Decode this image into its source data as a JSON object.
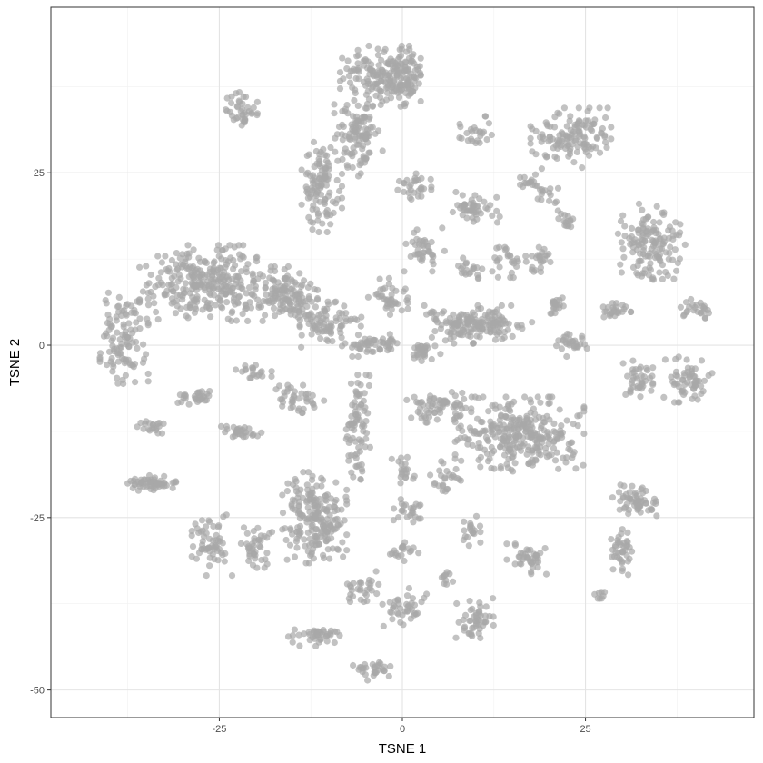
{
  "chart_data": {
    "type": "scatter",
    "title": "",
    "xlabel": "TSNE 1",
    "ylabel": "TSNE 2",
    "xlim": [
      -48,
      48
    ],
    "ylim": [
      -54,
      49
    ],
    "x_ticks": [
      -25,
      0,
      25
    ],
    "y_ticks": [
      -50,
      -25,
      0,
      25
    ],
    "x_tick_labels": [
      "-25",
      "0",
      "25"
    ],
    "y_tick_labels": [
      "-50",
      "-25",
      "0",
      "25"
    ],
    "grid": true,
    "legend": "none",
    "point_color": "#a8a8a8",
    "point_opacity": 0.7,
    "clusters": [
      {
        "cx": -26,
        "cy": 9,
        "rx": 9,
        "ry": 5,
        "n": 320
      },
      {
        "cx": -38,
        "cy": 1,
        "rx": 3,
        "ry": 6,
        "n": 110
      },
      {
        "cx": -16,
        "cy": 7,
        "rx": 4,
        "ry": 4,
        "n": 120
      },
      {
        "cx": -10,
        "cy": 3,
        "rx": 4,
        "ry": 3,
        "n": 80
      },
      {
        "cx": -5,
        "cy": 0,
        "rx": 3,
        "ry": 1.5,
        "n": 40
      },
      {
        "cx": -3,
        "cy": 39,
        "rx": 5,
        "ry": 4,
        "n": 150
      },
      {
        "cx": -6,
        "cy": 30,
        "rx": 3,
        "ry": 5,
        "n": 110
      },
      {
        "cx": -11,
        "cy": 23,
        "rx": 2.5,
        "ry": 6,
        "n": 110
      },
      {
        "cx": 0.5,
        "cy": 39,
        "rx": 2,
        "ry": 4,
        "n": 70
      },
      {
        "cx": -22,
        "cy": 34,
        "rx": 2,
        "ry": 3,
        "n": 40
      },
      {
        "cx": -12,
        "cy": -25,
        "rx": 4,
        "ry": 6,
        "n": 210
      },
      {
        "cx": -6,
        "cy": -12,
        "rx": 1.5,
        "ry": 7,
        "n": 80
      },
      {
        "cx": 16,
        "cy": -13,
        "rx": 8,
        "ry": 5,
        "n": 300
      },
      {
        "cx": 5,
        "cy": -9,
        "rx": 4,
        "ry": 2,
        "n": 70
      },
      {
        "cx": 10,
        "cy": 3,
        "rx": 7,
        "ry": 2.5,
        "n": 170
      },
      {
        "cx": 3,
        "cy": -1,
        "rx": 2,
        "ry": 1.5,
        "n": 30
      },
      {
        "cx": 23,
        "cy": 30,
        "rx": 5,
        "ry": 4,
        "n": 130
      },
      {
        "cx": 34,
        "cy": 15,
        "rx": 4.5,
        "ry": 5,
        "n": 140
      },
      {
        "cx": 39,
        "cy": -5,
        "rx": 3,
        "ry": 3,
        "n": 60
      },
      {
        "cx": 32,
        "cy": -5,
        "rx": 2,
        "ry": 2.5,
        "n": 40
      },
      {
        "cx": 40,
        "cy": 5,
        "rx": 2,
        "ry": 1.5,
        "n": 25
      },
      {
        "cx": 32,
        "cy": -23,
        "rx": 3,
        "ry": 2.5,
        "n": 60
      },
      {
        "cx": 30,
        "cy": -30,
        "rx": 1.5,
        "ry": 3,
        "n": 40
      },
      {
        "cx": -26,
        "cy": -29,
        "rx": 2.5,
        "ry": 4,
        "n": 60
      },
      {
        "cx": -20,
        "cy": -29,
        "rx": 2,
        "ry": 3,
        "n": 40
      },
      {
        "cx": -34,
        "cy": -20,
        "rx": 3.5,
        "ry": 1,
        "n": 60
      },
      {
        "cx": -34,
        "cy": -12,
        "rx": 2,
        "ry": 1,
        "n": 20
      },
      {
        "cx": -28,
        "cy": -7.5,
        "rx": 3,
        "ry": 1,
        "n": 30
      },
      {
        "cx": -22,
        "cy": -12.5,
        "rx": 2.5,
        "ry": 1,
        "n": 30
      },
      {
        "cx": -14,
        "cy": -8,
        "rx": 3,
        "ry": 2,
        "n": 40
      },
      {
        "cx": -20,
        "cy": -4,
        "rx": 2.5,
        "ry": 1,
        "n": 20
      },
      {
        "cx": -2,
        "cy": 7,
        "rx": 2.5,
        "ry": 3,
        "n": 40
      },
      {
        "cx": 3,
        "cy": 14,
        "rx": 2.5,
        "ry": 3,
        "n": 40
      },
      {
        "cx": 2,
        "cy": 23,
        "rx": 2.5,
        "ry": 2,
        "n": 30
      },
      {
        "cx": 10,
        "cy": 20,
        "rx": 3,
        "ry": 2,
        "n": 50
      },
      {
        "cx": 10,
        "cy": 31,
        "rx": 2,
        "ry": 2,
        "n": 25
      },
      {
        "cx": 17,
        "cy": 24,
        "rx": 1.5,
        "ry": 1.5,
        "n": 15
      },
      {
        "cx": 20,
        "cy": 22,
        "rx": 1.5,
        "ry": 1.5,
        "n": 15
      },
      {
        "cx": 14,
        "cy": 12,
        "rx": 2,
        "ry": 2,
        "n": 25
      },
      {
        "cx": 19,
        "cy": 12,
        "rx": 2,
        "ry": 2,
        "n": 25
      },
      {
        "cx": 22,
        "cy": 18,
        "rx": 1.5,
        "ry": 1.5,
        "n": 15
      },
      {
        "cx": 9,
        "cy": 11,
        "rx": 2,
        "ry": 1.5,
        "n": 20
      },
      {
        "cx": 21,
        "cy": 6,
        "rx": 1.5,
        "ry": 1.5,
        "n": 20
      },
      {
        "cx": 23,
        "cy": 0,
        "rx": 2,
        "ry": 1.5,
        "n": 30
      },
      {
        "cx": 29,
        "cy": 5,
        "rx": 2,
        "ry": 1,
        "n": 25
      },
      {
        "cx": 6,
        "cy": -19,
        "rx": 2,
        "ry": 2,
        "n": 25
      },
      {
        "cx": 0,
        "cy": -18,
        "rx": 1.5,
        "ry": 2,
        "n": 20
      },
      {
        "cx": 9,
        "cy": -27,
        "rx": 1.5,
        "ry": 2,
        "n": 20
      },
      {
        "cx": 17,
        "cy": -31,
        "rx": 2.5,
        "ry": 2,
        "n": 40
      },
      {
        "cx": 1,
        "cy": -24,
        "rx": 2,
        "ry": 1.5,
        "n": 25
      },
      {
        "cx": 0,
        "cy": -30,
        "rx": 2,
        "ry": 1.5,
        "n": 20
      },
      {
        "cx": 0,
        "cy": -38,
        "rx": 3,
        "ry": 2.5,
        "n": 40
      },
      {
        "cx": 10,
        "cy": -40,
        "rx": 2.5,
        "ry": 3,
        "n": 50
      },
      {
        "cx": 6,
        "cy": -34,
        "rx": 1,
        "ry": 1,
        "n": 10
      },
      {
        "cx": -6,
        "cy": -35,
        "rx": 2.5,
        "ry": 2,
        "n": 30
      },
      {
        "cx": -12,
        "cy": -42,
        "rx": 3.5,
        "ry": 1.5,
        "n": 40
      },
      {
        "cx": -4,
        "cy": -47,
        "rx": 2.5,
        "ry": 1.5,
        "n": 30
      },
      {
        "cx": -2,
        "cy": 0,
        "rx": 1.5,
        "ry": 1,
        "n": 15
      },
      {
        "cx": 27,
        "cy": -36,
        "rx": 1,
        "ry": 1,
        "n": 8
      }
    ]
  }
}
